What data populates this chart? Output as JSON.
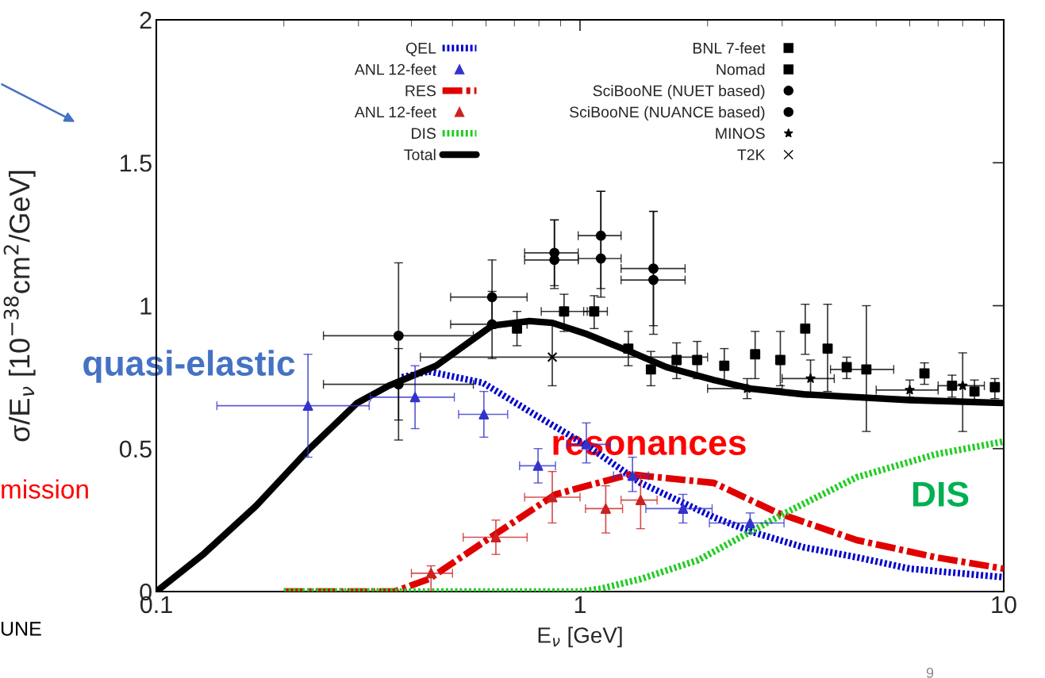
{
  "chart_data": {
    "type": "line",
    "xlabel": "E$_{ν}$ [GeV]",
    "ylabel": "σ/E$_{ν}$ [10$^{−38}$cm$^{2}$/GeV]",
    "log": "x",
    "xlim": [
      0.1,
      10
    ],
    "xticks": [
      0.1,
      1,
      10
    ],
    "ylim": [
      0,
      2
    ],
    "yticks": [
      0,
      0.5,
      1,
      1.5,
      2
    ],
    "grid": false,
    "legend": "top",
    "series": [
      {
        "name": "QEL",
        "type": "line",
        "color": "#0000cc",
        "line_style": "dotted",
        "marker": "none",
        "x": [
          0.38,
          0.44,
          0.59,
          0.78,
          1.04,
          1.39,
          2.07,
          2.53,
          3.37,
          4.5,
          6.0,
          10
        ],
        "values": [
          0.75,
          0.77,
          0.73,
          0.62,
          0.51,
          0.38,
          0.26,
          0.21,
          0.155,
          0.12,
          0.08,
          0.05
        ]
      },
      {
        "name": "ANL 12-feet",
        "type": "scatter",
        "color": "#3333cc",
        "marker": "triangle",
        "x": [
          0.228,
          0.408,
          0.593,
          0.796,
          1.035,
          1.33,
          1.75,
          2.52
        ],
        "values": [
          0.65,
          0.68,
          0.62,
          0.44,
          0.515,
          0.405,
          0.29,
          0.24
        ],
        "errors": [
          [
            0.47,
            0.83
          ],
          [
            0.57,
            0.79
          ],
          [
            0.54,
            0.7
          ],
          [
            0.38,
            0.5
          ],
          [
            0.45,
            0.59
          ],
          [
            0.35,
            0.47
          ],
          [
            0.24,
            0.34
          ],
          [
            0.205,
            0.275
          ]
        ],
        "xerrors": [
          [
            0.139,
            0.318
          ],
          [
            0.32,
            0.505
          ],
          [
            0.517,
            0.675
          ],
          [
            0.72,
            0.875
          ],
          [
            0.93,
            1.18
          ],
          [
            1.2,
            1.45
          ],
          [
            1.43,
            2.05
          ],
          [
            2.02,
            3.03
          ]
        ]
      },
      {
        "name": "RES",
        "type": "line",
        "color": "#e00000",
        "line_style": "dashed",
        "marker": "none",
        "x": [
          0.2,
          0.365,
          0.44,
          0.63,
          0.875,
          1.31,
          2.07,
          2.93,
          4.5,
          6.9,
          10
        ],
        "values": [
          0,
          0,
          0.044,
          0.2,
          0.34,
          0.41,
          0.38,
          0.275,
          0.18,
          0.12,
          0.08
        ]
      },
      {
        "name": "ANL 12-feet",
        "type": "scatter",
        "color": "#cc2222",
        "marker": "triangle",
        "x": [
          0.445,
          0.633,
          0.86,
          1.15,
          1.39
        ],
        "values": [
          0.064,
          0.19,
          0.33,
          0.29,
          0.32
        ],
        "errors": [
          [
            0,
            0.09
          ],
          [
            0.13,
            0.25
          ],
          [
            0.24,
            0.42
          ],
          [
            0.205,
            0.37
          ],
          [
            0.22,
            0.41
          ]
        ],
        "xerrors": [
          [
            0.4,
            0.5
          ],
          [
            0.53,
            0.75
          ],
          [
            0.74,
            1.0
          ],
          [
            1.03,
            1.26
          ],
          [
            1.25,
            1.52
          ]
        ]
      },
      {
        "name": "DIS",
        "type": "line",
        "color": "#22cc22",
        "line_style": "dotted",
        "marker": "none",
        "x": [
          0.2,
          1.0,
          1.12,
          1.39,
          1.9,
          3.05,
          4.5,
          6.9,
          10
        ],
        "values": [
          0,
          0,
          0.01,
          0.044,
          0.11,
          0.275,
          0.4,
          0.48,
          0.525
        ]
      },
      {
        "name": "Total",
        "type": "line",
        "color": "#000000",
        "line_style": "solid",
        "marker": "none",
        "x": [
          0.1,
          0.129,
          0.172,
          0.23,
          0.298,
          0.354,
          0.458,
          0.62,
          0.76,
          0.86,
          1.04,
          1.31,
          1.6,
          2.07,
          2.53,
          3.37,
          4.5,
          6.0,
          9.9
        ],
        "values": [
          0,
          0.13,
          0.3,
          0.5,
          0.66,
          0.72,
          0.79,
          0.93,
          0.946,
          0.94,
          0.9,
          0.84,
          0.785,
          0.74,
          0.71,
          0.69,
          0.68,
          0.67,
          0.66
        ]
      },
      {
        "name": "BNL 7-feet",
        "type": "scatter",
        "color": "#000000",
        "marker": "square",
        "x": [
          0.71,
          0.917,
          1.08,
          1.3,
          1.47,
          1.69,
          1.89,
          2.19,
          2.59,
          2.97,
          3.4,
          3.84,
          4.74
        ],
        "values": [
          0.92,
          0.98,
          0.98,
          0.85,
          0.777,
          0.81,
          0.81,
          0.79,
          0.83,
          0.81,
          0.92,
          0.85,
          0.777
        ],
        "errors": [
          [
            0.86,
            0.98
          ],
          [
            0.91,
            1.04
          ],
          [
            0.92,
            1.035
          ],
          [
            0.79,
            0.91
          ],
          [
            0.72,
            0.84
          ],
          [
            0.745,
            0.87
          ],
          [
            0.745,
            0.875
          ],
          [
            0.73,
            0.85
          ],
          [
            0.745,
            0.91
          ],
          [
            0.72,
            0.91
          ],
          [
            0.83,
            1.005
          ],
          [
            0.7,
            1.005
          ],
          [
            0.56,
            1.0
          ]
        ],
        "xerrors": [
          null,
          [
            0.81,
            1.04
          ],
          [
            1.02,
            1.16
          ],
          null,
          null,
          null,
          null,
          null,
          null,
          null,
          null,
          null,
          [
            3.9,
            5.5
          ]
        ]
      },
      {
        "name": "Nomad",
        "type": "scatter",
        "color": "#000000",
        "marker": "square",
        "x": [
          4.26,
          6.5,
          7.55,
          8.53,
          9.53
        ],
        "values": [
          0.785,
          0.763,
          0.72,
          0.7,
          0.715
        ],
        "errors": [
          [
            0.745,
            0.82
          ],
          [
            0.725,
            0.8
          ],
          [
            0.68,
            0.757
          ],
          [
            0.66,
            0.74
          ],
          [
            0.675,
            0.745
          ]
        ]
      },
      {
        "name": "SciBooNE (NUET based)",
        "type": "scatter",
        "color": "#000000",
        "marker": "circle",
        "x": [
          0.373,
          0.62,
          0.87,
          1.12,
          1.49
        ],
        "values": [
          0.725,
          0.935,
          1.185,
          1.245,
          1.13
        ],
        "errors": [
          [
            0.6,
            0.85
          ],
          [
            0.815,
            1.05
          ],
          [
            1.07,
            1.3
          ],
          [
            1.06,
            1.4
          ],
          [
            0.93,
            1.33
          ]
        ],
        "xerrors": [
          [
            0.248,
            0.56
          ],
          [
            0.495,
            0.75
          ],
          [
            0.74,
            0.99
          ],
          [
            0.99,
            1.25
          ],
          [
            1.25,
            1.77
          ]
        ]
      },
      {
        "name": "SciBooNE (NUANCE based)",
        "type": "scatter",
        "color": "#000000",
        "marker": "circle",
        "x": [
          0.373,
          0.62,
          0.87,
          1.12,
          1.49
        ],
        "values": [
          0.895,
          1.03,
          1.16,
          1.165,
          1.09
        ],
        "errors": [
          [
            0.53,
            1.15
          ],
          [
            0.92,
            1.16
          ],
          [
            1.06,
            1.3
          ],
          [
            1.03,
            1.4
          ],
          [
            0.9,
            1.33
          ]
        ],
        "xerrors": [
          [
            0.248,
            0.56
          ],
          [
            0.495,
            0.75
          ],
          [
            0.74,
            0.99
          ],
          [
            0.99,
            1.25
          ],
          [
            1.25,
            1.77
          ]
        ]
      },
      {
        "name": "MINOS",
        "type": "scatter",
        "color": "#000000",
        "marker": "star",
        "x": [
          2.48,
          3.5,
          6.0,
          8.0
        ],
        "values": [
          0.71,
          0.745,
          0.705,
          0.72
        ],
        "errors": [
          [
            0.675,
            0.745
          ],
          [
            0.68,
            0.81
          ],
          [
            0.68,
            0.74
          ],
          [
            0.56,
            0.835
          ]
        ],
        "xerrors": [
          [
            2.0,
            3.0
          ],
          [
            3.0,
            3.98
          ],
          [
            5.0,
            7.0
          ],
          [
            7.0,
            9.0
          ]
        ]
      },
      {
        "name": "T2K",
        "type": "scatter",
        "color": "#000000",
        "marker": "cross",
        "x": [
          0.86
        ],
        "values": [
          0.82
        ],
        "errors": [
          [
            0.72,
            0.945
          ]
        ],
        "xerrors": [
          [
            0.42,
            2.0
          ]
        ]
      }
    ],
    "annotations": [
      "quasi-elastic",
      "resonances",
      "DIS",
      "mission",
      "UNE",
      "9"
    ]
  }
}
